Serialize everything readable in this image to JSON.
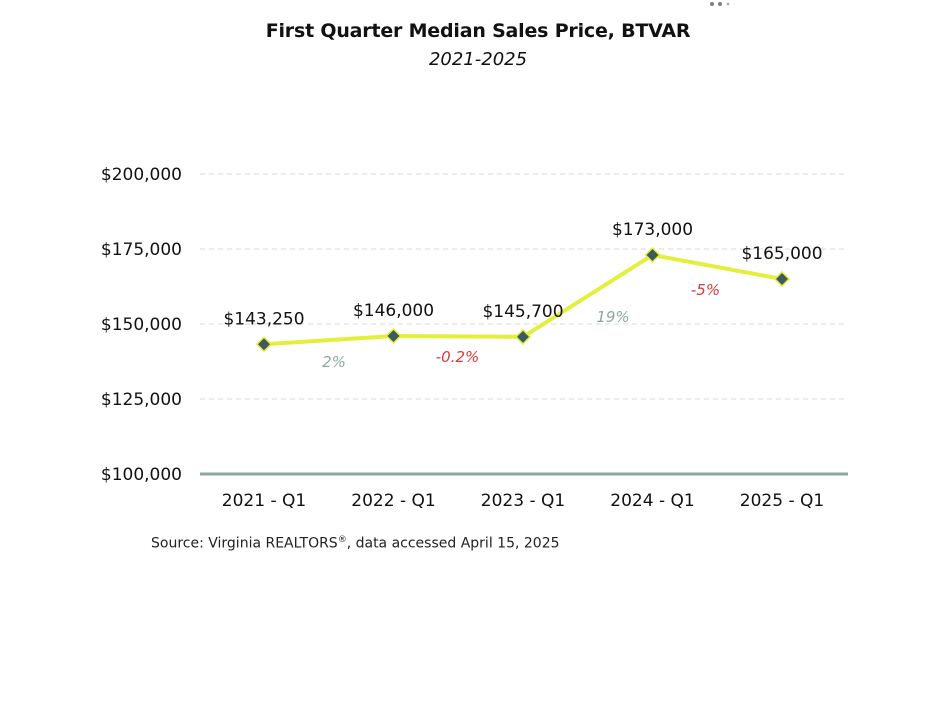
{
  "title": "First Quarter Median Sales Price, BTVAR",
  "subtitle": "2021-2025",
  "source": {
    "prefix": "Source: Virginia REALTORS",
    "mark": "®",
    "suffix": ", data accessed April 15, 2025"
  },
  "chart_data": {
    "type": "line",
    "categories": [
      "2021 - Q1",
      "2022 - Q1",
      "2023 - Q1",
      "2024 - Q1",
      "2025 - Q1"
    ],
    "values": [
      143250,
      146000,
      145700,
      173000,
      165000
    ],
    "data_labels": [
      "$143,250",
      "$146,000",
      "$145,700",
      "$173,000",
      "$165,000"
    ],
    "changes": [
      "2%",
      "-0.2%",
      "19%",
      "-5%"
    ],
    "change_colors": [
      "#8fa89f",
      "#d93a3a",
      "#8fa89f",
      "#d93a3a"
    ],
    "ylim": [
      100000,
      200000
    ],
    "yticks": [
      100000,
      125000,
      150000,
      175000,
      200000
    ],
    "ytick_labels": [
      "$100,000",
      "$125,000",
      "$150,000",
      "$175,000",
      "$200,000"
    ],
    "grid": true,
    "legend": "none",
    "colors": {
      "line": "#e3ef3b",
      "marker": "#3d5a5f",
      "marker_edge": "#e3ef3b",
      "axis": "#8fa89f",
      "grid": "#d9d9d9"
    }
  }
}
